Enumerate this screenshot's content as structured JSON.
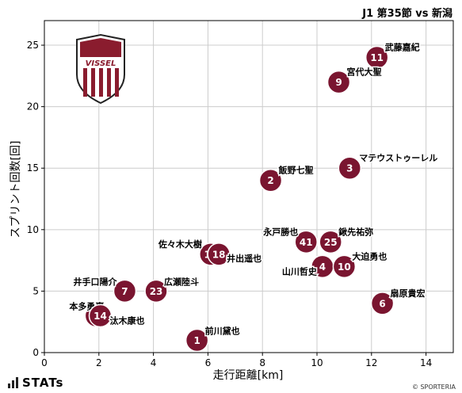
{
  "title": "J1 第35節 vs 新潟",
  "footer": {
    "logo_text": "STATs",
    "credit": "© SPORTERIA"
  },
  "team_logo": {
    "text": "VISSEL",
    "color": "#8a1c2e"
  },
  "colors": {
    "marker": "#7a1530",
    "marker_edge": "#ffffff",
    "grid": "#cccccc"
  },
  "chart_data": {
    "type": "scatter",
    "xlabel": "走行距離[km]",
    "ylabel": "スプリント回数[回]",
    "xlim": [
      0,
      15
    ],
    "ylim": [
      0,
      27
    ],
    "xticks": [
      0,
      2,
      4,
      6,
      8,
      10,
      12,
      14
    ],
    "yticks": [
      0,
      5,
      10,
      15,
      20,
      25
    ],
    "grid": true,
    "points": [
      {
        "number": "11",
        "name": "武藤嘉紀",
        "x": 12.2,
        "y": 24
      },
      {
        "number": "9",
        "name": "宮代大聖",
        "x": 10.8,
        "y": 22
      },
      {
        "number": "3",
        "name": "マテウストゥーレル",
        "x": 11.2,
        "y": 15
      },
      {
        "number": "2",
        "name": "飯野七聖",
        "x": 8.3,
        "y": 14
      },
      {
        "number": "41",
        "name": "永戸勝也",
        "x": 9.6,
        "y": 9
      },
      {
        "number": "25",
        "name": "鍬先祐弥",
        "x": 10.5,
        "y": 9
      },
      {
        "number": "4",
        "name": "山川哲史",
        "x": 10.2,
        "y": 7
      },
      {
        "number": "10",
        "name": "大迫勇也",
        "x": 11.0,
        "y": 7
      },
      {
        "number": "6",
        "name": "扇原貴宏",
        "x": 12.4,
        "y": 4
      },
      {
        "number": "13",
        "name": "佐々木大樹",
        "x": 6.1,
        "y": 8
      },
      {
        "number": "18",
        "name": "井出遥也",
        "x": 6.4,
        "y": 8
      },
      {
        "number": "7",
        "name": "井手口陽介",
        "x": 2.95,
        "y": 5
      },
      {
        "number": "23",
        "name": "広瀬陸斗",
        "x": 4.1,
        "y": 5
      },
      {
        "number": "15",
        "name": "本多勇喜",
        "x": 1.9,
        "y": 3
      },
      {
        "number": "14",
        "name": "汰木康也",
        "x": 2.05,
        "y": 3
      },
      {
        "number": "1",
        "name": "前川黛也",
        "x": 5.6,
        "y": 1
      }
    ]
  }
}
